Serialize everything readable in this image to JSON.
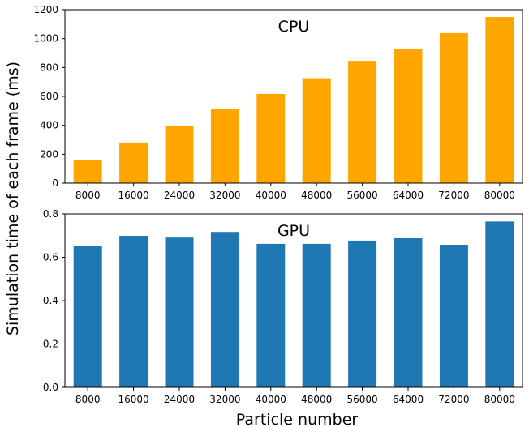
{
  "figure": {
    "xlabel": "Particle number",
    "ylabel": "Simulation time of each frame (ms)"
  },
  "chart_data": [
    {
      "type": "bar",
      "title": "CPU",
      "color": "#ffa500",
      "categories": [
        "8000",
        "16000",
        "24000",
        "32000",
        "40000",
        "48000",
        "56000",
        "64000",
        "72000",
        "80000"
      ],
      "values": [
        157,
        281,
        398,
        513,
        617,
        726,
        846,
        928,
        1038,
        1149
      ],
      "ylim": [
        0,
        1200
      ],
      "yticks": [
        0,
        200,
        400,
        600,
        800,
        1000,
        1200
      ],
      "ytick_labels": [
        "0",
        "200",
        "400",
        "600",
        "800",
        "1000",
        "1200"
      ],
      "grid": false
    },
    {
      "type": "bar",
      "title": "GPU",
      "color": "#1f77b4",
      "categories": [
        "8000",
        "16000",
        "24000",
        "32000",
        "40000",
        "48000",
        "56000",
        "64000",
        "72000",
        "80000"
      ],
      "values": [
        0.651,
        0.699,
        0.691,
        0.717,
        0.662,
        0.662,
        0.677,
        0.688,
        0.658,
        0.765
      ],
      "ylim": [
        0,
        0.8
      ],
      "yticks": [
        0,
        0.2,
        0.4,
        0.6,
        0.8
      ],
      "ytick_labels": [
        "0.0",
        "0.2",
        "0.4",
        "0.6",
        "0.8"
      ],
      "grid": false
    }
  ]
}
